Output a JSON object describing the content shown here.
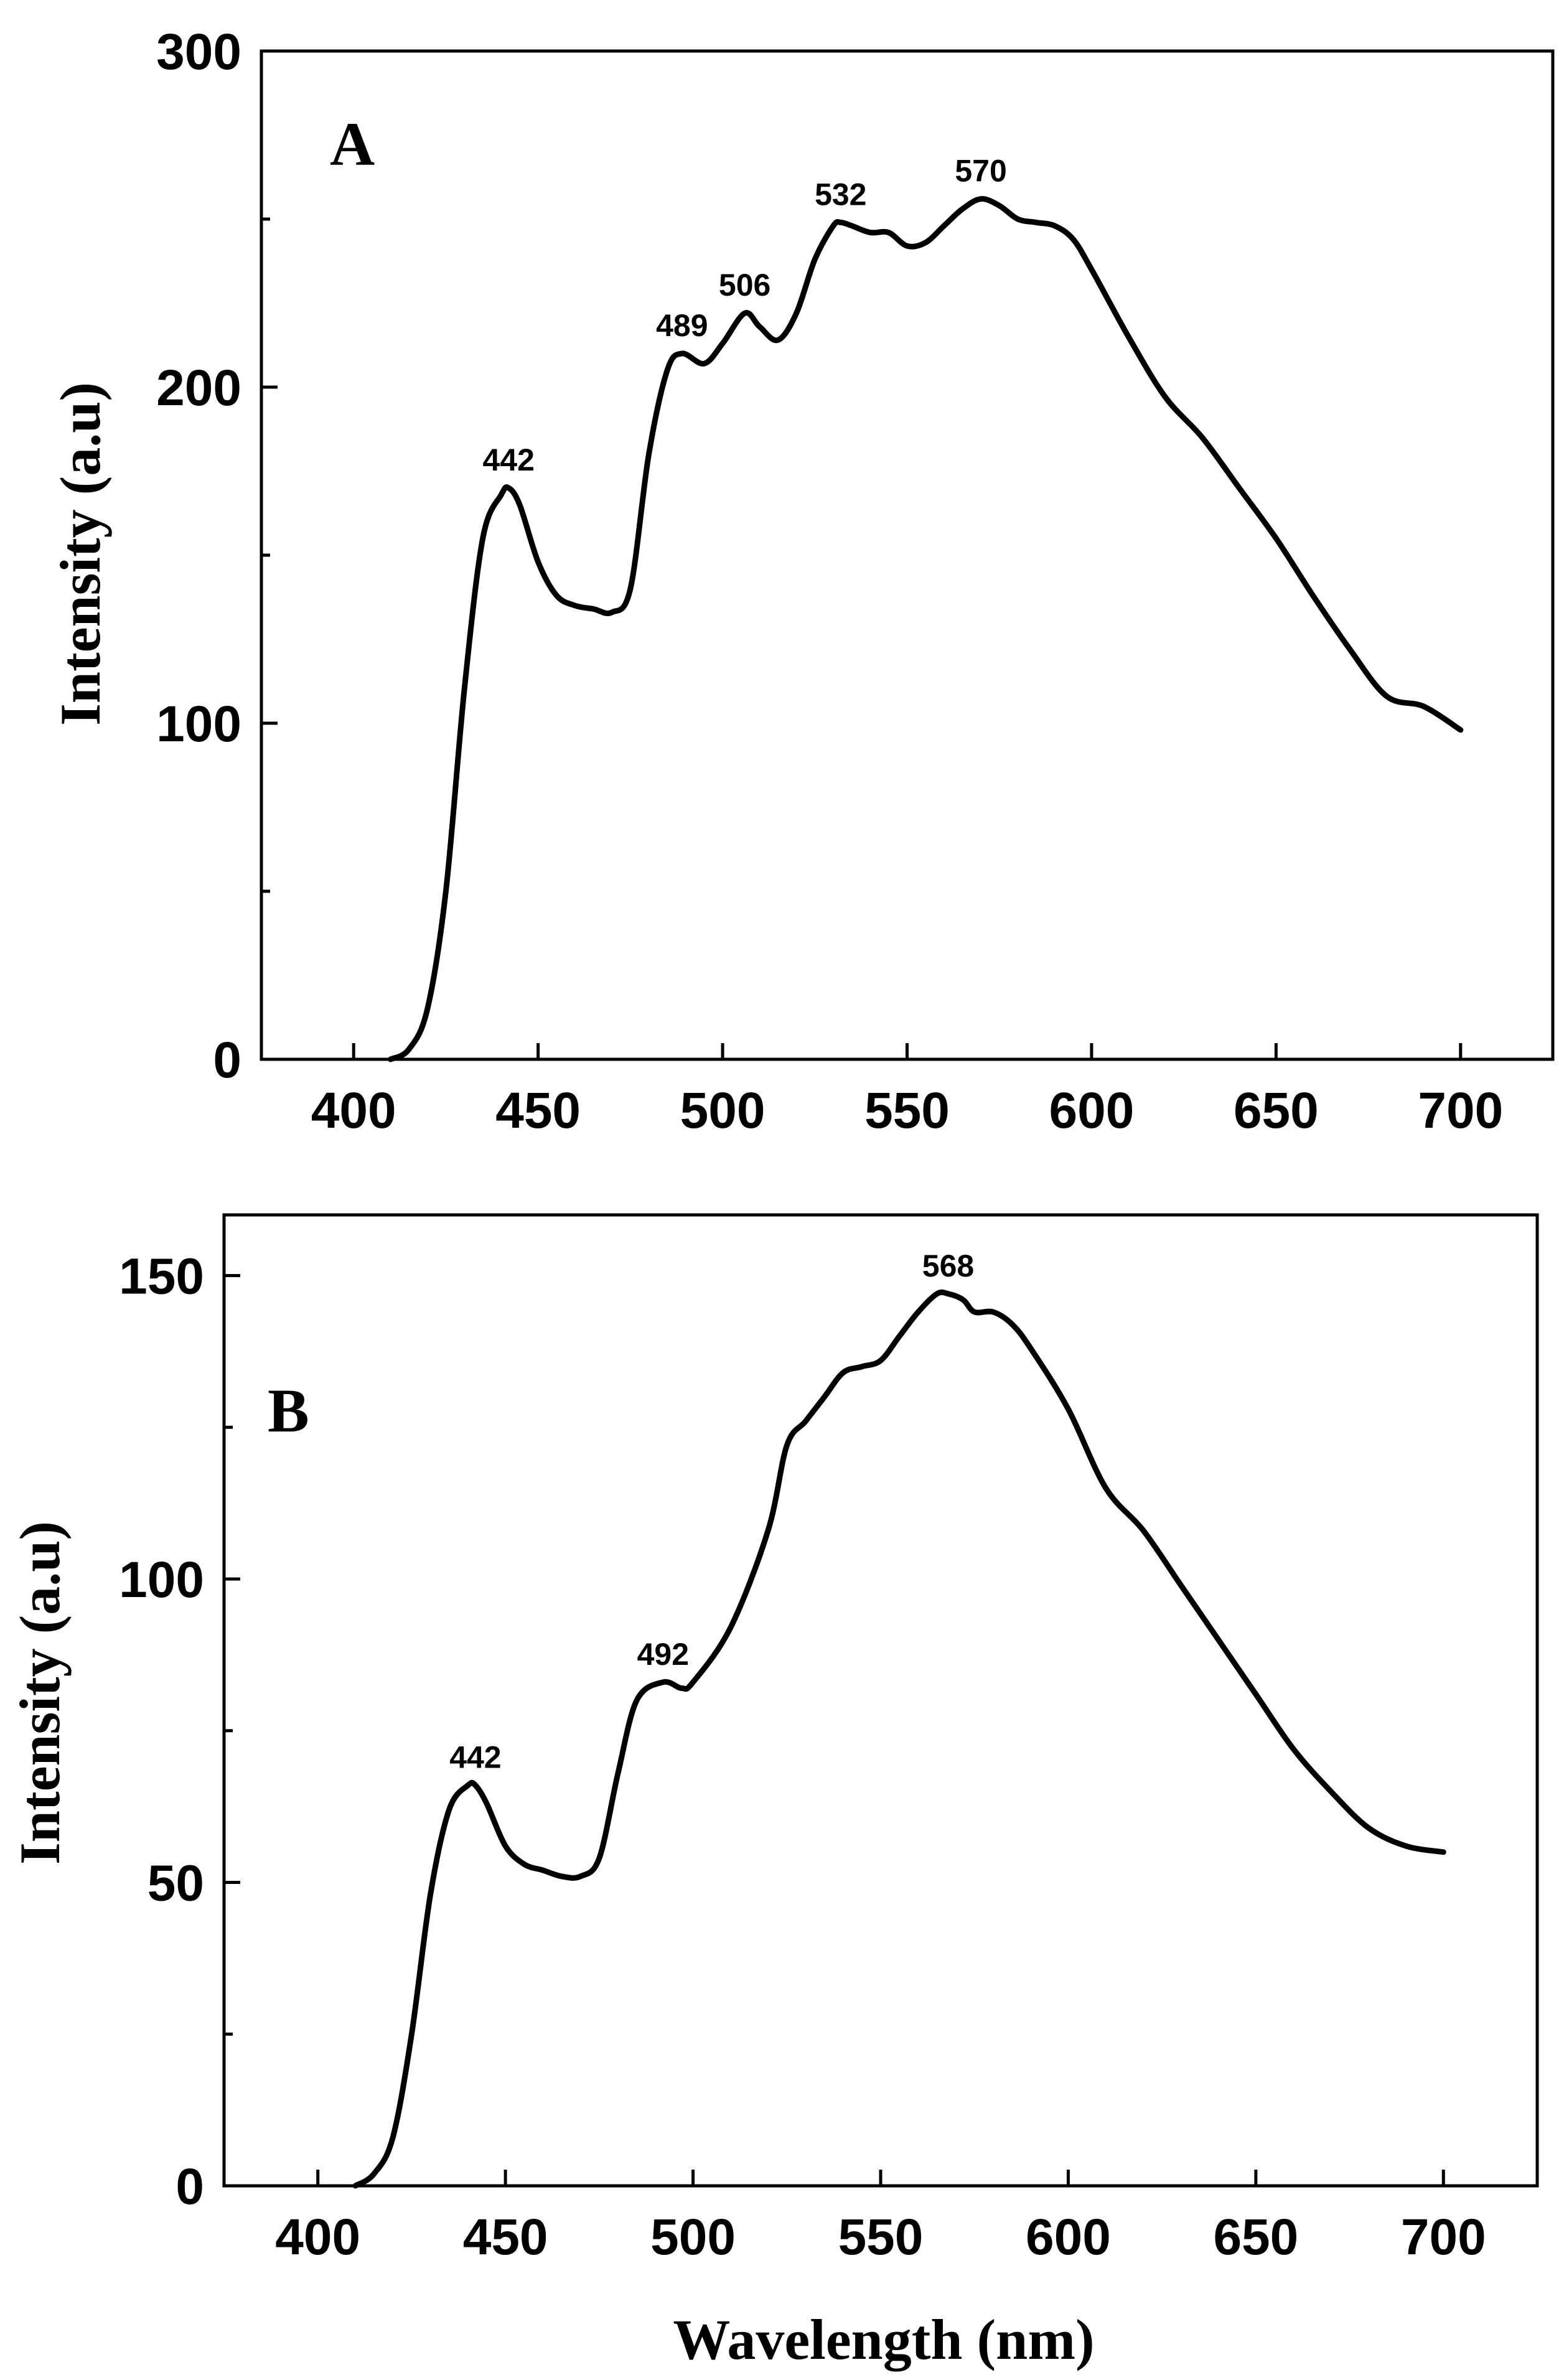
{
  "chart_data": [
    {
      "type": "line",
      "panel": "A",
      "xlabel": "",
      "ylabel": "Intensity (a.u)",
      "xlim": [
        375,
        725
      ],
      "ylim": [
        0,
        300
      ],
      "xticks": [
        400,
        450,
        500,
        550,
        600,
        650,
        700
      ],
      "yticks": [
        0,
        100,
        200,
        300
      ],
      "yminor": [
        50,
        150,
        250
      ],
      "series": [
        {
          "name": "A",
          "x": [
            410,
            415,
            420,
            425,
            430,
            435,
            440,
            442,
            445,
            450,
            455,
            460,
            465,
            470,
            475,
            480,
            485,
            489,
            495,
            500,
            506,
            510,
            515,
            520,
            525,
            530,
            532,
            535,
            540,
            545,
            550,
            555,
            560,
            565,
            570,
            575,
            580,
            585,
            590,
            595,
            600,
            610,
            620,
            630,
            640,
            650,
            660,
            670,
            680,
            690,
            700
          ],
          "y": [
            0,
            3,
            15,
            50,
            110,
            155,
            168,
            170,
            165,
            148,
            138,
            135,
            134,
            133,
            140,
            180,
            205,
            210,
            207,
            213,
            222,
            218,
            214,
            222,
            238,
            248,
            249,
            248,
            246,
            246,
            242,
            243,
            248,
            253,
            256,
            254,
            250,
            249,
            248,
            244,
            235,
            215,
            197,
            185,
            170,
            155,
            138,
            122,
            108,
            105,
            98
          ]
        }
      ],
      "annotations": [
        {
          "x": 442,
          "y": 170,
          "text": "442"
        },
        {
          "x": 489,
          "y": 210,
          "text": "489"
        },
        {
          "x": 506,
          "y": 222,
          "text": "506"
        },
        {
          "x": 532,
          "y": 249,
          "text": "532"
        },
        {
          "x": 570,
          "y": 256,
          "text": "570"
        }
      ]
    },
    {
      "type": "line",
      "panel": "B",
      "xlabel": "Wavelength (nm)",
      "ylabel": "Intensity (a.u)",
      "xlim": [
        375,
        725
      ],
      "ylim": [
        0,
        160
      ],
      "xticks": [
        400,
        450,
        500,
        550,
        600,
        650,
        700
      ],
      "yticks": [
        0,
        50,
        100,
        150
      ],
      "yminor": [
        25,
        75,
        125
      ],
      "series": [
        {
          "name": "B",
          "x": [
            410,
            415,
            420,
            425,
            430,
            435,
            440,
            442,
            445,
            450,
            455,
            460,
            465,
            470,
            475,
            480,
            485,
            492,
            497,
            500,
            510,
            520,
            525,
            530,
            535,
            540,
            545,
            550,
            555,
            560,
            565,
            568,
            572,
            575,
            580,
            585,
            590,
            600,
            610,
            620,
            630,
            640,
            650,
            660,
            670,
            680,
            690,
            700
          ],
          "y": [
            0,
            2,
            8,
            25,
            48,
            62,
            66,
            66,
            63,
            56,
            53,
            52,
            51,
            51,
            54,
            68,
            80,
            83,
            82,
            83,
            92,
            108,
            122,
            126,
            130,
            134,
            135,
            136,
            140,
            144,
            147,
            147,
            146,
            144,
            144,
            142,
            138,
            128,
            115,
            108,
            99,
            90,
            81,
            72,
            65,
            59,
            56,
            55
          ]
        }
      ],
      "annotations": [
        {
          "x": 442,
          "y": 66,
          "text": "442"
        },
        {
          "x": 492,
          "y": 83,
          "text": "492"
        },
        {
          "x": 568,
          "y": 147,
          "text": "568"
        }
      ]
    }
  ]
}
